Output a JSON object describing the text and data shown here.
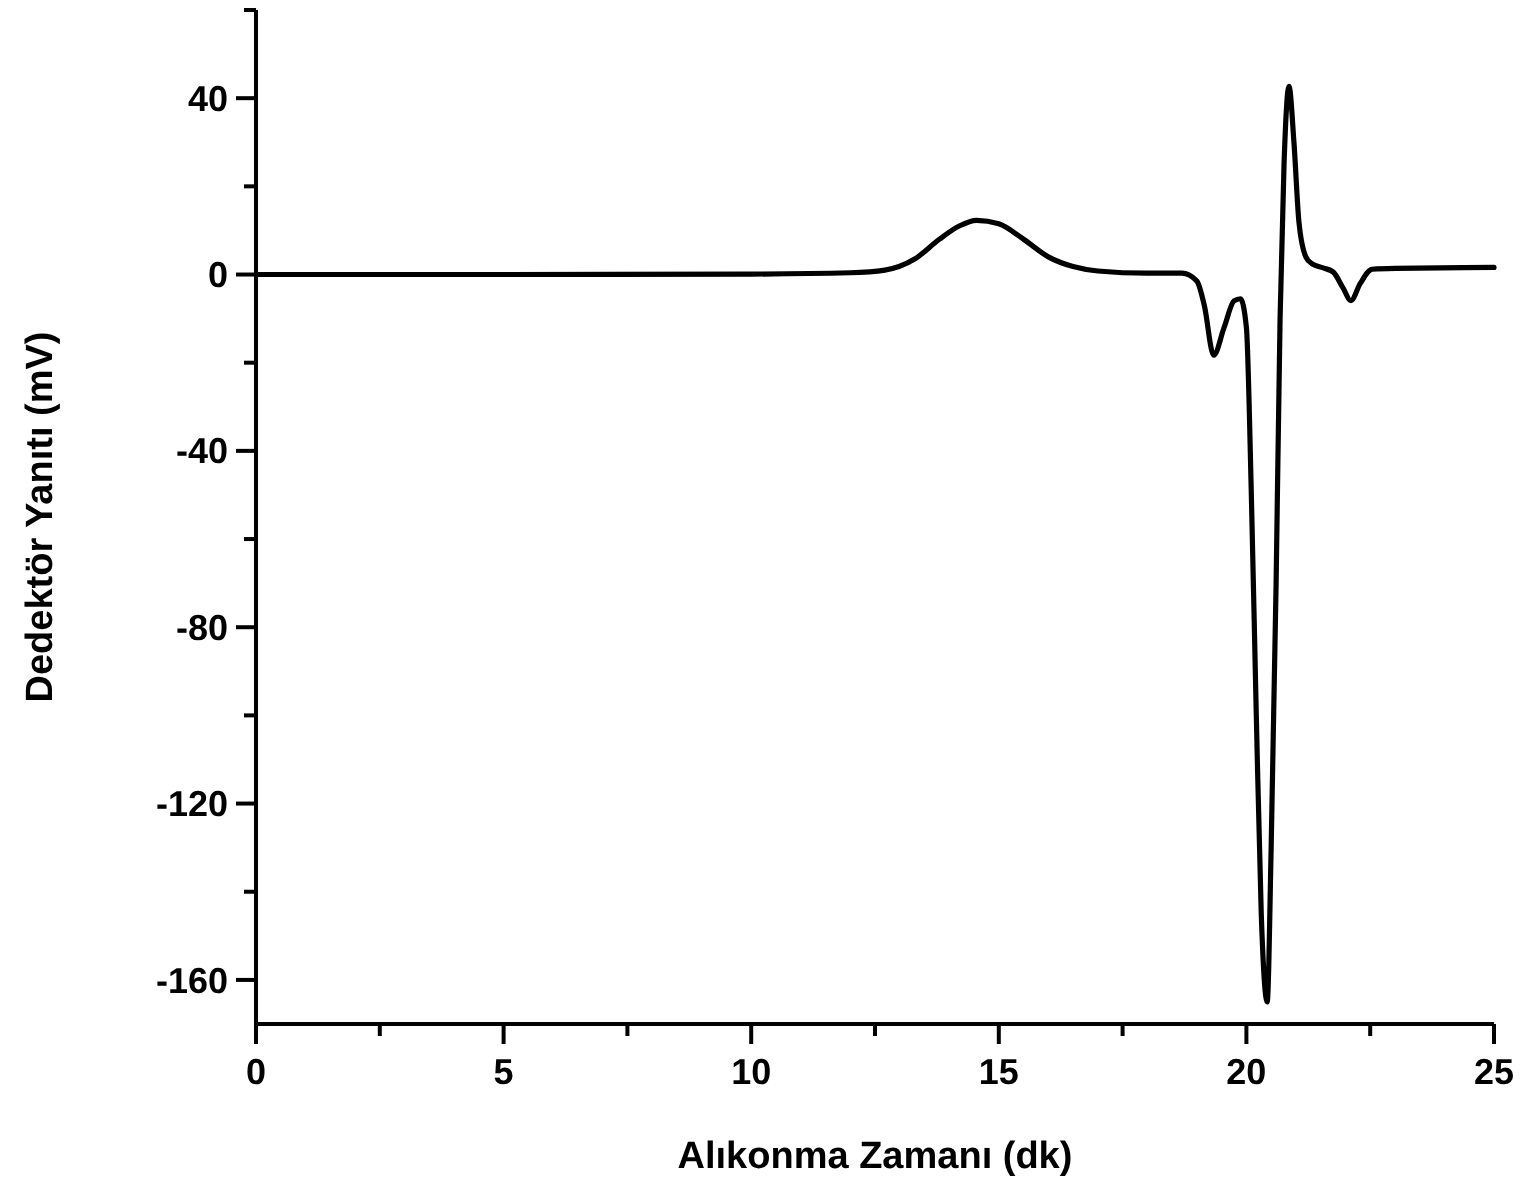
{
  "chart_data": {
    "type": "line",
    "xlabel": "Alıkonma Zamanı (dk)",
    "ylabel": "Dedektör Yanıtı (mV)",
    "xlim": [
      0,
      25
    ],
    "ylim": [
      -170,
      60
    ],
    "xticks": [
      0,
      {
        "value": 2.5,
        "label": null
      },
      5,
      {
        "value": 7.5,
        "label": null
      },
      10,
      {
        "value": 12.5,
        "label": null
      },
      15,
      {
        "value": 17.5,
        "label": null
      },
      20,
      {
        "value": 22.5,
        "label": null
      },
      25
    ],
    "yticks": [
      -160,
      {
        "value": -140,
        "label": null
      },
      -120,
      {
        "value": -100,
        "label": null
      },
      -80,
      {
        "value": -60,
        "label": null
      },
      -40,
      {
        "value": -20,
        "label": null
      },
      0,
      {
        "value": 20,
        "label": null
      },
      40,
      {
        "value": 60,
        "label": null
      }
    ],
    "grid": false,
    "marker": "none",
    "line_style": "solid",
    "series": [
      {
        "color": "#000000",
        "x": [
          0,
          5,
          10,
          12,
          12.7,
          13.3,
          13.8,
          14.2,
          14.55,
          15,
          15.5,
          16,
          16.5,
          17,
          18,
          18.7,
          19.0,
          19.15,
          19.34,
          19.55,
          19.75,
          19.88,
          20.0,
          20.1,
          20.2,
          20.3,
          20.42,
          20.5,
          20.6,
          20.68,
          20.76,
          20.86,
          20.96,
          21.06,
          21.2,
          21.33,
          21.55,
          21.75,
          21.95,
          22.11,
          22.3,
          22.54,
          23,
          25
        ],
        "values": [
          0,
          0,
          0.1,
          0.4,
          1,
          3.5,
          8,
          11,
          12.3,
          11.5,
          8,
          4,
          1.8,
          0.8,
          0.3,
          0.3,
          -1.5,
          -7,
          -18.3,
          -12,
          -6,
          -5.5,
          -12,
          -50,
          -100,
          -145,
          -165,
          -130,
          -70,
          -10,
          25,
          42.7,
          30,
          12,
          4,
          2.4,
          1.5,
          0.6,
          -3,
          -5.9,
          -2,
          1.2,
          1.4,
          1.6
        ]
      }
    ]
  }
}
